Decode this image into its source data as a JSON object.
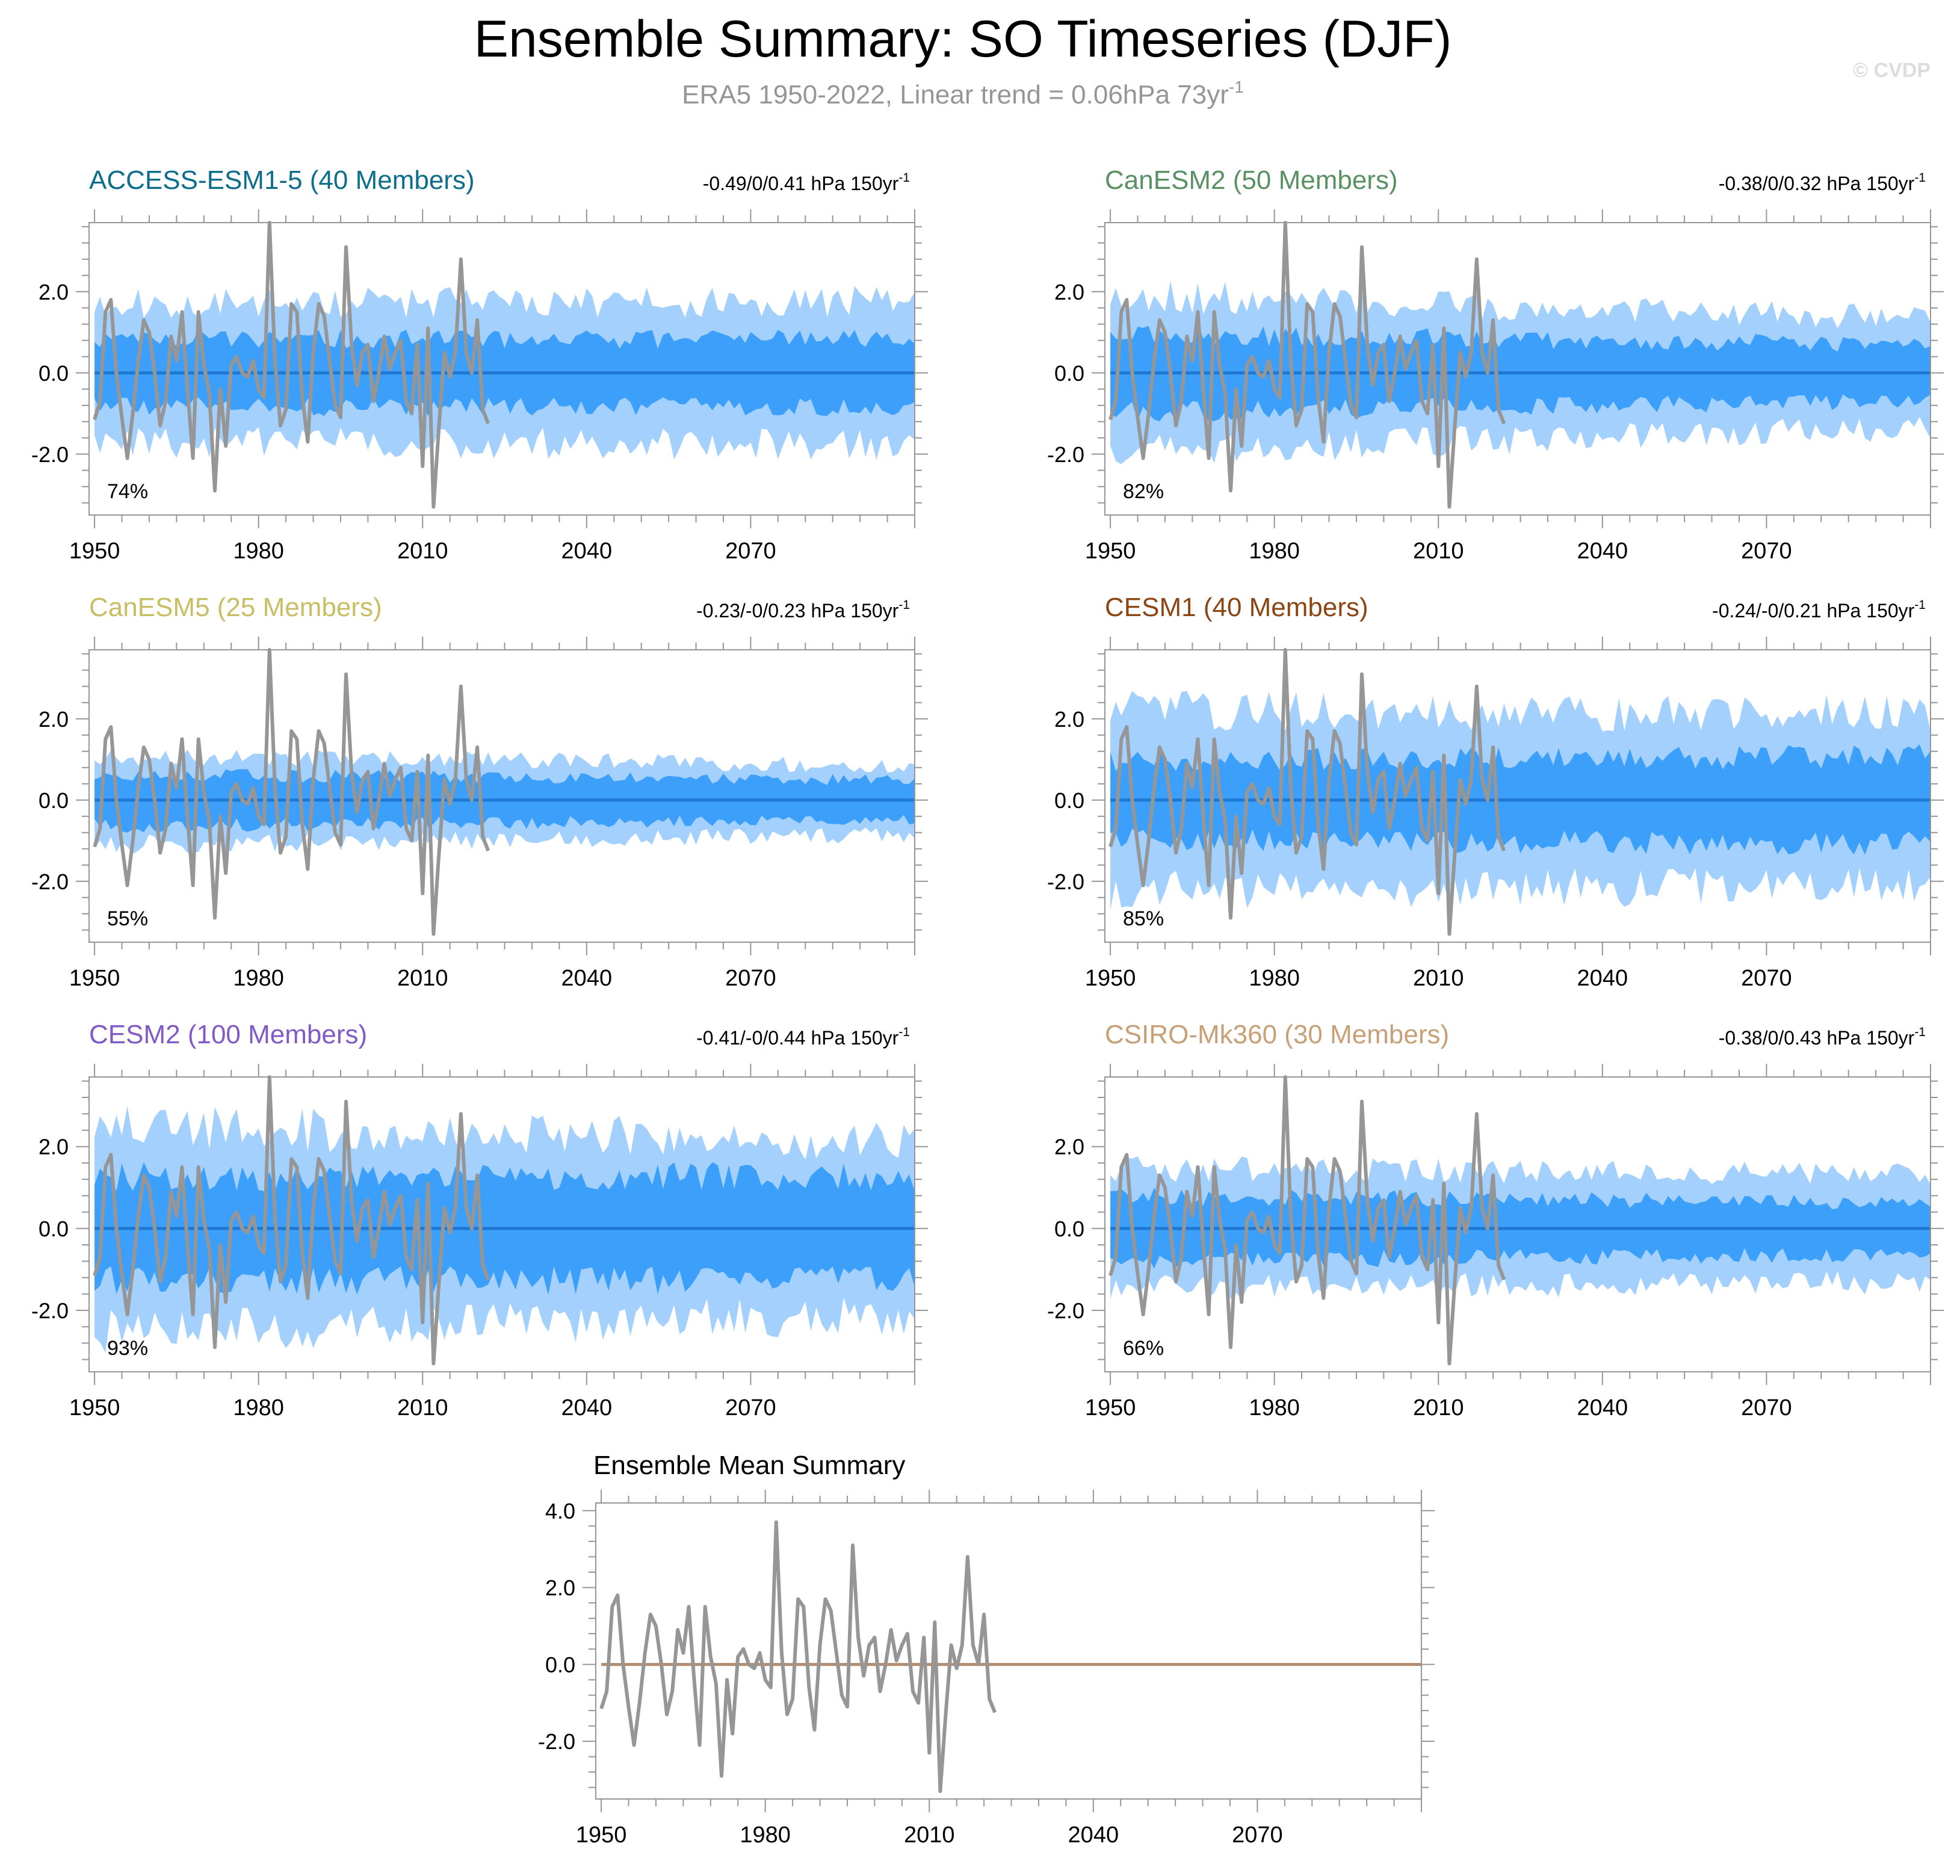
{
  "figure": {
    "title": "Ensemble Summary: SO Timeseries (DJF)",
    "subtitle_prefix": "ERA5 1950-2022, Linear trend = 0.06hPa 73yr",
    "subtitle_sup": "-1",
    "watermark": "© CVDP"
  },
  "colors": {
    "outer_band": "#a3d0fc",
    "inner_band": "#3ca0fa",
    "ensemble_mean": "#1e78d2",
    "observations": "#969696",
    "mean_zero_line": "#b48c6e",
    "axis": "#969696"
  },
  "chart_data": [
    {
      "type": "area",
      "title": "ACCESS-ESM1-5 (40 Members)",
      "title_color": "#0d6e8c",
      "trend_label": "-0.49/0/0.41 hPa 150yr",
      "trend_sup": "-1",
      "percent_label": "74%",
      "x_range": [
        1949,
        2100
      ],
      "ylim": [
        -3.5,
        3.7
      ],
      "xticks": [
        1950,
        1980,
        2010,
        2040,
        2070
      ],
      "yticks": [
        -2.0,
        0.0,
        2.0
      ],
      "band_widths": {
        "inner_start": 0.85,
        "inner_end": 0.85,
        "outer_start": 1.7,
        "outer_end": 1.75
      },
      "seed": 11
    },
    {
      "type": "area",
      "title": "CanESM2 (50 Members)",
      "title_color": "#5a9164",
      "trend_label": "-0.38/0/0.32 hPa 150yr",
      "trend_sup": "-1",
      "percent_label": "82%",
      "x_range": [
        1949,
        2100
      ],
      "ylim": [
        -3.5,
        3.7
      ],
      "xticks": [
        1950,
        1980,
        2010,
        2040,
        2070
      ],
      "yticks": [
        -2.0,
        0.0,
        2.0
      ],
      "band_widths": {
        "inner_start": 1.0,
        "inner_end": 0.7,
        "outer_start": 1.9,
        "outer_end": 1.35
      },
      "seed": 23
    },
    {
      "type": "area",
      "title": "CanESM5 (25 Members)",
      "title_color": "#c8be64",
      "trend_label": "-0.23/-0/0.23 hPa 150yr",
      "trend_sup": "-1",
      "percent_label": "55%",
      "x_range": [
        1949,
        2100
      ],
      "ylim": [
        -3.5,
        3.7
      ],
      "xticks": [
        1950,
        1980,
        2010,
        2040,
        2070
      ],
      "yticks": [
        -2.0,
        0.0,
        2.0
      ],
      "band_widths": {
        "inner_start": 0.65,
        "inner_end": 0.5,
        "outer_start": 1.1,
        "outer_end": 0.85
      },
      "seed": 37
    },
    {
      "type": "area",
      "title": "CESM1 (40 Members)",
      "title_color": "#8c4614",
      "trend_label": "-0.24/-0/0.21 hPa 150yr",
      "trend_sup": "-1",
      "percent_label": "85%",
      "x_range": [
        1949,
        2100
      ],
      "ylim": [
        -3.5,
        3.7
      ],
      "xticks": [
        1950,
        1980,
        2010,
        2040,
        2070
      ],
      "yticks": [
        -2.0,
        0.0,
        2.0
      ],
      "band_widths": {
        "inner_start": 1.0,
        "inner_end": 1.1,
        "outer_start": 2.2,
        "outer_end": 2.1
      },
      "seed": 41
    },
    {
      "type": "area",
      "title": "CESM2 (100 Members)",
      "title_color": "#825ac8",
      "trend_label": "-0.41/-0/0.44 hPa 150yr",
      "trend_sup": "-1",
      "percent_label": "93%",
      "x_range": [
        1949,
        2100
      ],
      "ylim": [
        -3.5,
        3.7
      ],
      "xticks": [
        1950,
        1980,
        2010,
        2040,
        2070
      ],
      "yticks": [
        -2.0,
        0.0,
        2.0
      ],
      "band_widths": {
        "inner_start": 1.3,
        "inner_end": 1.3,
        "outer_start": 2.5,
        "outer_end": 2.1
      },
      "seed": 59
    },
    {
      "type": "area",
      "title": "CSIRO-Mk360 (30 Members)",
      "title_color": "#c8a078",
      "trend_label": "-0.38/0/0.43 hPa 150yr",
      "trend_sup": "-1",
      "percent_label": "66%",
      "x_range": [
        1949,
        2100
      ],
      "ylim": [
        -3.5,
        3.7
      ],
      "xticks": [
        1950,
        1980,
        2010,
        2040,
        2070
      ],
      "yticks": [
        -2.0,
        0.0,
        2.0
      ],
      "band_widths": {
        "inner_start": 0.8,
        "inner_end": 0.65,
        "outer_start": 1.45,
        "outer_end": 1.3
      },
      "seed": 73
    },
    {
      "type": "line",
      "title": "Ensemble Mean Summary",
      "x_range": [
        1949,
        2100
      ],
      "ylim": [
        -3.5,
        4.2
      ],
      "xticks": [
        1950,
        1980,
        2010,
        2040,
        2070
      ],
      "yticks": [
        -2.0,
        0.0,
        2.0,
        4.0
      ],
      "ensemble_mean_value": 0.0
    }
  ],
  "observations": {
    "name": "ERA5",
    "years": [
      1950,
      1951,
      1952,
      1953,
      1954,
      1955,
      1956,
      1957,
      1958,
      1959,
      1960,
      1961,
      1962,
      1963,
      1964,
      1965,
      1966,
      1967,
      1968,
      1969,
      1970,
      1971,
      1972,
      1973,
      1974,
      1975,
      1976,
      1977,
      1978,
      1979,
      1980,
      1981,
      1982,
      1983,
      1984,
      1985,
      1986,
      1987,
      1988,
      1989,
      1990,
      1991,
      1992,
      1993,
      1994,
      1995,
      1996,
      1997,
      1998,
      1999,
      2000,
      2001,
      2002,
      2003,
      2004,
      2005,
      2006,
      2007,
      2008,
      2009,
      2010,
      2011,
      2012,
      2013,
      2014,
      2015,
      2016,
      2017,
      2018,
      2019,
      2020,
      2021,
      2022
    ],
    "values": [
      -1.15,
      -0.7,
      1.5,
      1.8,
      0.0,
      -1.1,
      -2.1,
      -1.0,
      0.3,
      1.3,
      1.0,
      0.0,
      -1.3,
      -0.7,
      0.9,
      0.3,
      1.5,
      -0.4,
      -2.1,
      1.5,
      0.2,
      -0.5,
      -2.9,
      -0.4,
      -1.8,
      0.2,
      0.4,
      0.0,
      -0.1,
      0.3,
      -0.4,
      -0.6,
      3.7,
      0.3,
      -1.3,
      -0.9,
      1.7,
      1.5,
      -0.6,
      -1.7,
      0.5,
      1.7,
      1.4,
      0.3,
      -0.8,
      -1.1,
      3.1,
      0.7,
      -0.3,
      0.5,
      0.7,
      -0.7,
      0.0,
      0.9,
      0.1,
      0.5,
      0.8,
      -0.7,
      -1.0,
      0.7,
      -2.3,
      1.1,
      -3.3,
      -1.3,
      0.5,
      -0.1,
      0.5,
      2.8,
      0.5,
      0.0,
      1.3,
      -0.9,
      -1.25
    ]
  }
}
